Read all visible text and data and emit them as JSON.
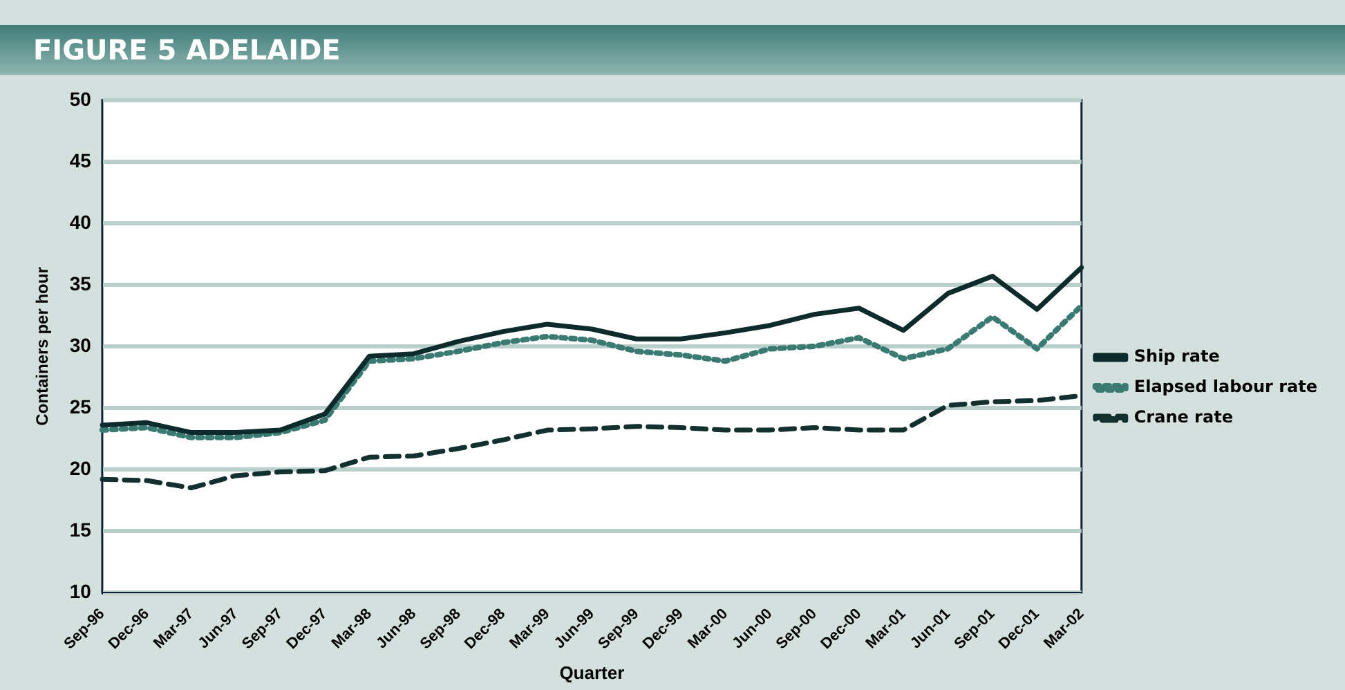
{
  "chart_data": {
    "type": "line",
    "title": "FIGURE 5  ADELAIDE",
    "xlabel": "Quarter",
    "ylabel": "Containers per hour",
    "categories": [
      "Sep-96",
      "Dec-96",
      "Mar-97",
      "Jun-97",
      "Sep-97",
      "Dec-97",
      "Mar-98",
      "Jun-98",
      "Sep-98",
      "Dec-98",
      "Mar-99",
      "Jun-99",
      "Sep-99",
      "Dec-99",
      "Mar-00",
      "Jun-00",
      "Sep-00",
      "Dec-00",
      "Mar-01",
      "Jun-01",
      "Sep-01",
      "Dec-01",
      "Mar-02"
    ],
    "series": [
      {
        "name": "Ship rate",
        "color": "#0d2b2b",
        "line_style": "solid",
        "values": [
          23.6,
          23.8,
          23.0,
          23.0,
          23.2,
          24.5,
          29.2,
          29.4,
          30.4,
          31.2,
          31.8,
          31.4,
          30.6,
          30.6,
          31.1,
          31.7,
          32.6,
          33.1,
          31.3,
          34.3,
          35.7,
          33.0,
          36.4
        ]
      },
      {
        "name": "Elapsed labour rate",
        "color": "#3a7a72",
        "line_style": "dotted",
        "values": [
          23.2,
          23.4,
          22.6,
          22.6,
          23.0,
          24.0,
          28.8,
          29.0,
          29.6,
          30.3,
          30.8,
          30.5,
          29.6,
          29.3,
          28.8,
          29.8,
          30.0,
          30.7,
          29.0,
          29.8,
          32.4,
          29.8,
          33.3
        ]
      },
      {
        "name": "Crane rate",
        "color": "#12302e",
        "line_style": "dashed",
        "values": [
          19.2,
          19.1,
          18.5,
          19.5,
          19.8,
          19.9,
          21.0,
          21.1,
          21.7,
          22.4,
          23.2,
          23.3,
          23.5,
          23.4,
          23.2,
          23.2,
          23.4,
          23.2,
          23.2,
          25.2,
          25.5,
          25.6,
          26.0
        ]
      }
    ],
    "ylim": [
      10,
      50
    ],
    "yticks": [
      10,
      15,
      20,
      25,
      30,
      35,
      40,
      45,
      50
    ],
    "grid": "y",
    "legend": "right",
    "marker": "none"
  }
}
